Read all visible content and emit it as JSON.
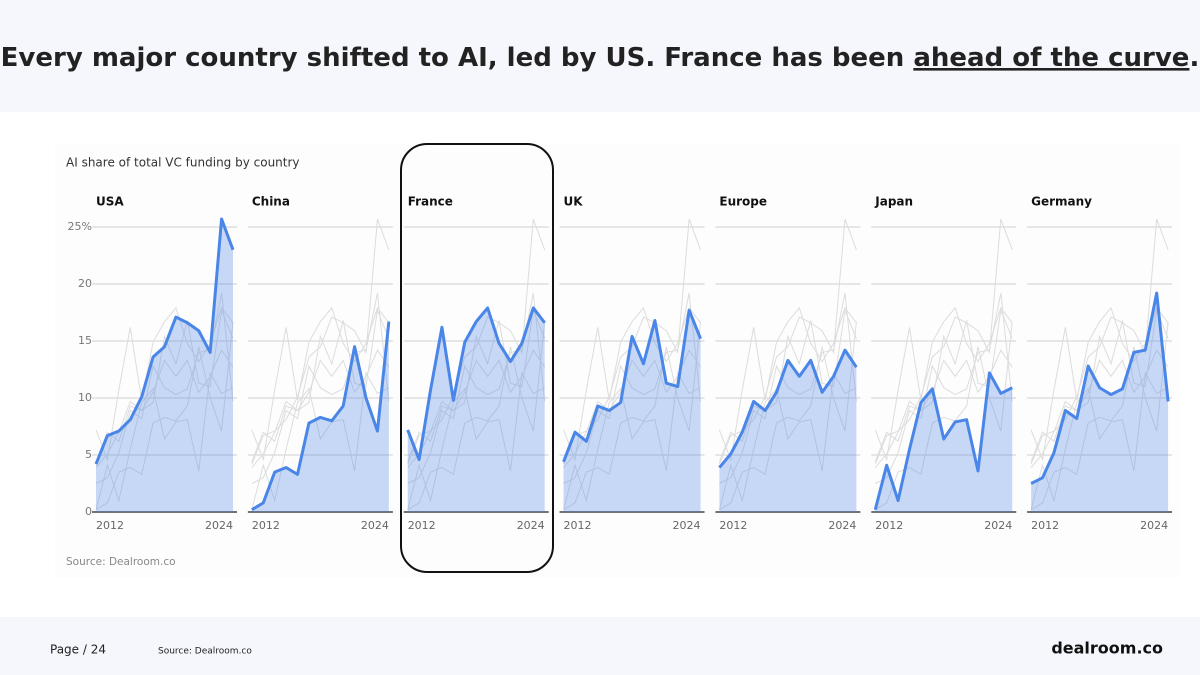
{
  "header": {
    "title": [
      "Every major country shifted to AI, led by US. France has been ",
      "ahead of the curve",
      "."
    ]
  },
  "panel_title": "AI share of total VC funding by country",
  "panel_source": "Source: Dealroom.co",
  "footer": {
    "page": "Page / 24",
    "source": "Source: Dealroom.co",
    "brand": "dealroom.co"
  },
  "chart_data": [
    {
      "type": "line",
      "title": "USA",
      "color": "#4a86e8",
      "x": [
        2012,
        2013,
        2014,
        2015,
        2016,
        2017,
        2018,
        2019,
        2020,
        2021,
        2022,
        2023,
        2024
      ],
      "xticks": [
        2012,
        2024
      ],
      "ylim": [
        0,
        25
      ],
      "yticks": [
        0,
        5,
        10,
        15,
        20,
        {
          "value": 25,
          "label": "25%"
        }
      ],
      "grid": true,
      "values": [
        4.2,
        6.7,
        7.1,
        8.1,
        10.1,
        13.6,
        14.5,
        17.1,
        16.6,
        15.9,
        14.0,
        25.7,
        23.0
      ]
    },
    {
      "type": "line",
      "title": "China",
      "color": "#4a86e8",
      "x": [
        2012,
        2013,
        2014,
        2015,
        2016,
        2017,
        2018,
        2019,
        2020,
        2021,
        2022,
        2023,
        2024
      ],
      "xticks": [
        2012,
        2024
      ],
      "ylim": [
        0,
        25
      ],
      "values": [
        0.2,
        0.8,
        3.5,
        3.9,
        3.3,
        7.8,
        8.3,
        8.0,
        9.3,
        14.5,
        10.0,
        7.1,
        16.7
      ]
    },
    {
      "type": "line",
      "title": "France",
      "color": "#4a86e8",
      "x": [
        2012,
        2013,
        2014,
        2015,
        2016,
        2017,
        2018,
        2019,
        2020,
        2021,
        2022,
        2023,
        2024
      ],
      "xticks": [
        2012,
        2024
      ],
      "ylim": [
        0,
        25
      ],
      "values": [
        7.2,
        4.6,
        10.7,
        16.2,
        9.8,
        14.9,
        16.7,
        17.9,
        14.8,
        13.2,
        14.8,
        17.9,
        16.6
      ]
    },
    {
      "type": "line",
      "title": "UK",
      "color": "#4a86e8",
      "x": [
        2012,
        2013,
        2014,
        2015,
        2016,
        2017,
        2018,
        2019,
        2020,
        2021,
        2022,
        2023,
        2024
      ],
      "xticks": [
        2012,
        2024
      ],
      "ylim": [
        0,
        25
      ],
      "values": [
        4.4,
        7.0,
        6.2,
        9.3,
        8.9,
        9.6,
        15.4,
        13.0,
        16.8,
        11.3,
        11.0,
        17.7,
        15.2
      ]
    },
    {
      "type": "line",
      "title": "Europe",
      "color": "#4a86e8",
      "x": [
        2012,
        2013,
        2014,
        2015,
        2016,
        2017,
        2018,
        2019,
        2020,
        2021,
        2022,
        2023,
        2024
      ],
      "xticks": [
        2012,
        2024
      ],
      "ylim": [
        0,
        25
      ],
      "values": [
        3.9,
        5.1,
        7.0,
        9.7,
        8.9,
        10.5,
        13.3,
        11.9,
        13.3,
        10.5,
        11.9,
        14.2,
        12.7
      ]
    },
    {
      "type": "line",
      "title": "Japan",
      "color": "#4a86e8",
      "x": [
        2012,
        2013,
        2014,
        2015,
        2016,
        2017,
        2018,
        2019,
        2020,
        2021,
        2022,
        2023,
        2024
      ],
      "xticks": [
        2012,
        2024
      ],
      "ylim": [
        0,
        25
      ],
      "values": [
        0.2,
        4.1,
        1.0,
        5.5,
        9.6,
        10.8,
        6.4,
        7.9,
        8.1,
        3.6,
        12.2,
        10.4,
        10.9
      ]
    },
    {
      "type": "line",
      "title": "Germany",
      "color": "#4a86e8",
      "x": [
        2012,
        2013,
        2014,
        2015,
        2016,
        2017,
        2018,
        2019,
        2020,
        2021,
        2022,
        2023,
        2024
      ],
      "xticks": [
        2012,
        2024
      ],
      "ylim": [
        0,
        25
      ],
      "values": [
        2.5,
        3.0,
        5.2,
        8.9,
        8.2,
        12.8,
        10.9,
        10.3,
        10.8,
        14.0,
        14.2,
        19.2,
        9.7
      ]
    }
  ]
}
